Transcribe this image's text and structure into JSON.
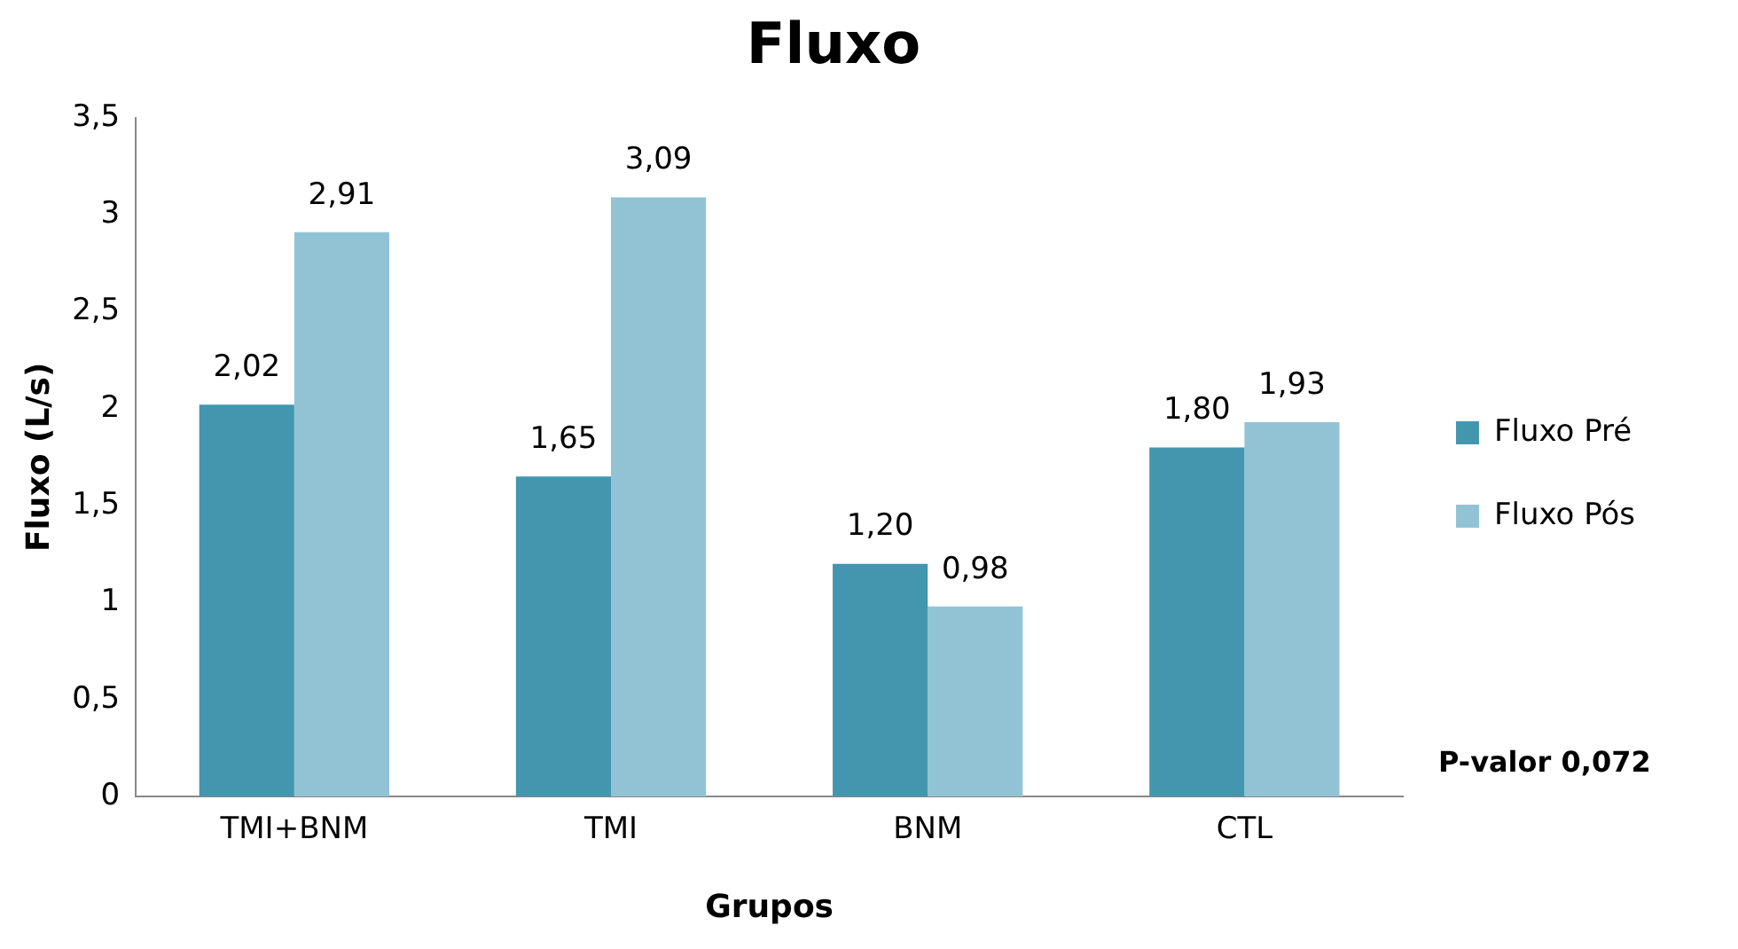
{
  "chart_data": {
    "type": "bar",
    "title": "Fluxo",
    "xlabel": "Grupos",
    "ylabel": "Fluxo (L/s)",
    "categories": [
      "TMI+BNM",
      "TMI",
      "BNM",
      "CTL"
    ],
    "series": [
      {
        "name": "Fluxo Pré",
        "color": "#4396ae",
        "values": [
          2.02,
          1.65,
          1.2,
          1.8
        ],
        "value_labels": [
          "2,02",
          "1,65",
          "1,20",
          "1,80"
        ]
      },
      {
        "name": "Fluxo Pós",
        "color": "#92c3d5",
        "values": [
          2.91,
          3.09,
          0.98,
          1.93
        ],
        "value_labels": [
          "2,91",
          "3,09",
          "0,98",
          "1,93"
        ]
      }
    ],
    "ylim": [
      0,
      3.5
    ],
    "yticks": [
      0,
      {
        "value": 0.5,
        "label": "0,5"
      },
      1,
      {
        "value": 1.5,
        "label": "1,5"
      },
      2,
      {
        "value": 2.5,
        "label": "2,5"
      },
      3,
      {
        "value": 3.5,
        "label": "3,5"
      }
    ],
    "grid": false,
    "legend": "right",
    "annotations": [
      "P-valor 0,072"
    ]
  }
}
